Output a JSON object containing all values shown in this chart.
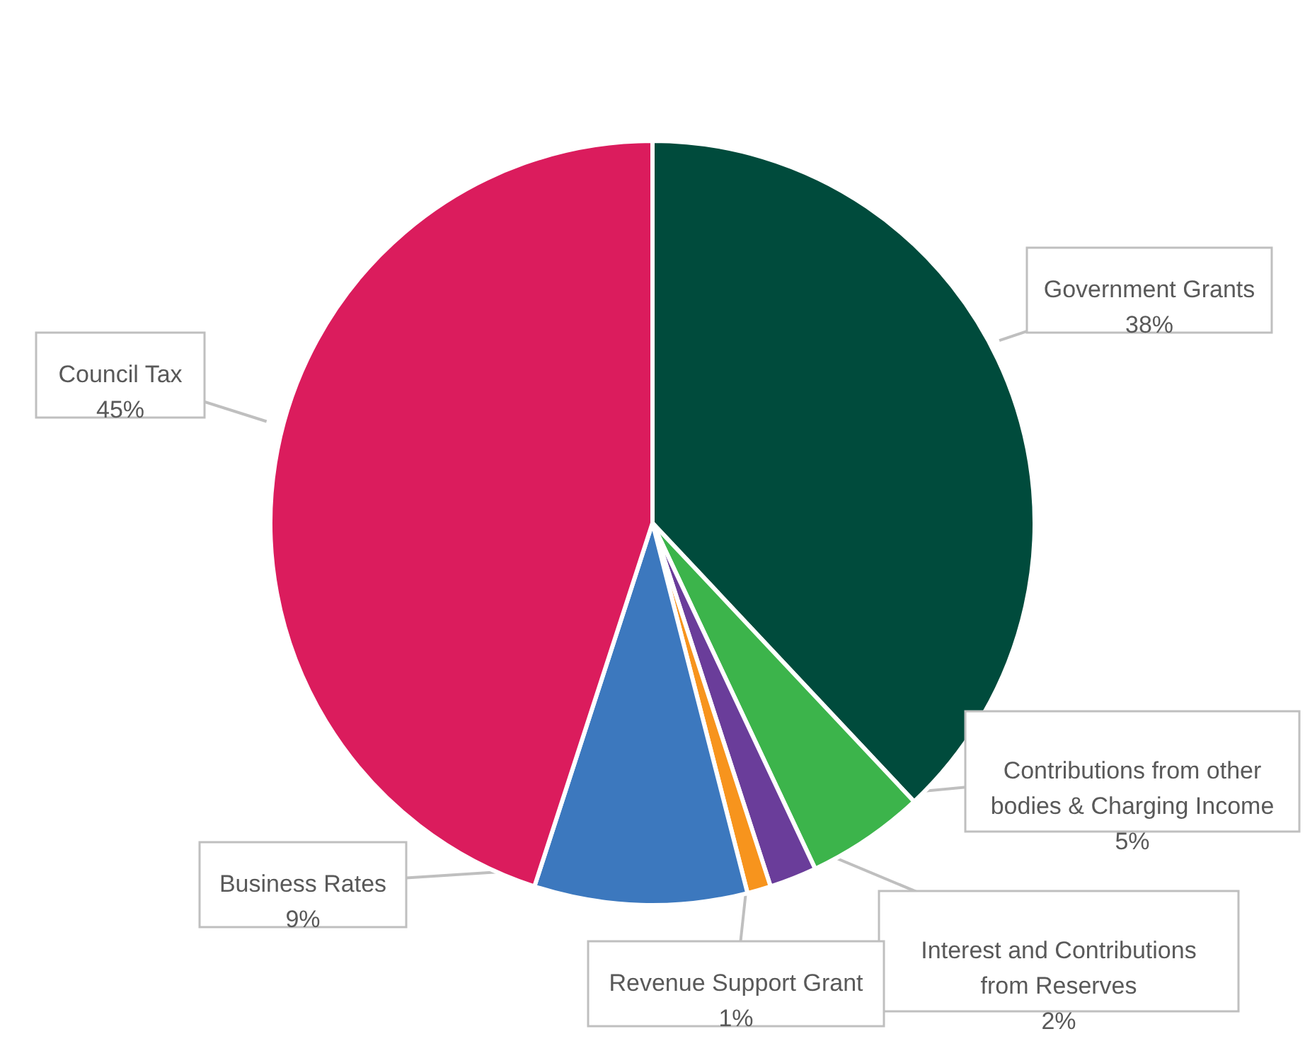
{
  "chart_data": {
    "type": "pie",
    "categories": [
      "Government Grants",
      "Contributions from other bodies & Charging Income",
      "Interest and Contributions from Reserves",
      "Revenue Support Grant",
      "Business Rates",
      "Council Tax"
    ],
    "values": [
      38,
      5,
      2,
      1,
      9,
      45
    ],
    "value_labels": [
      "38%",
      "5%",
      "2%",
      "1%",
      "9%",
      "45%"
    ],
    "colors": [
      "#004b3c",
      "#3cb44b",
      "#6a3d9a",
      "#f7941d",
      "#3c78be",
      "#db1c5d"
    ]
  }
}
